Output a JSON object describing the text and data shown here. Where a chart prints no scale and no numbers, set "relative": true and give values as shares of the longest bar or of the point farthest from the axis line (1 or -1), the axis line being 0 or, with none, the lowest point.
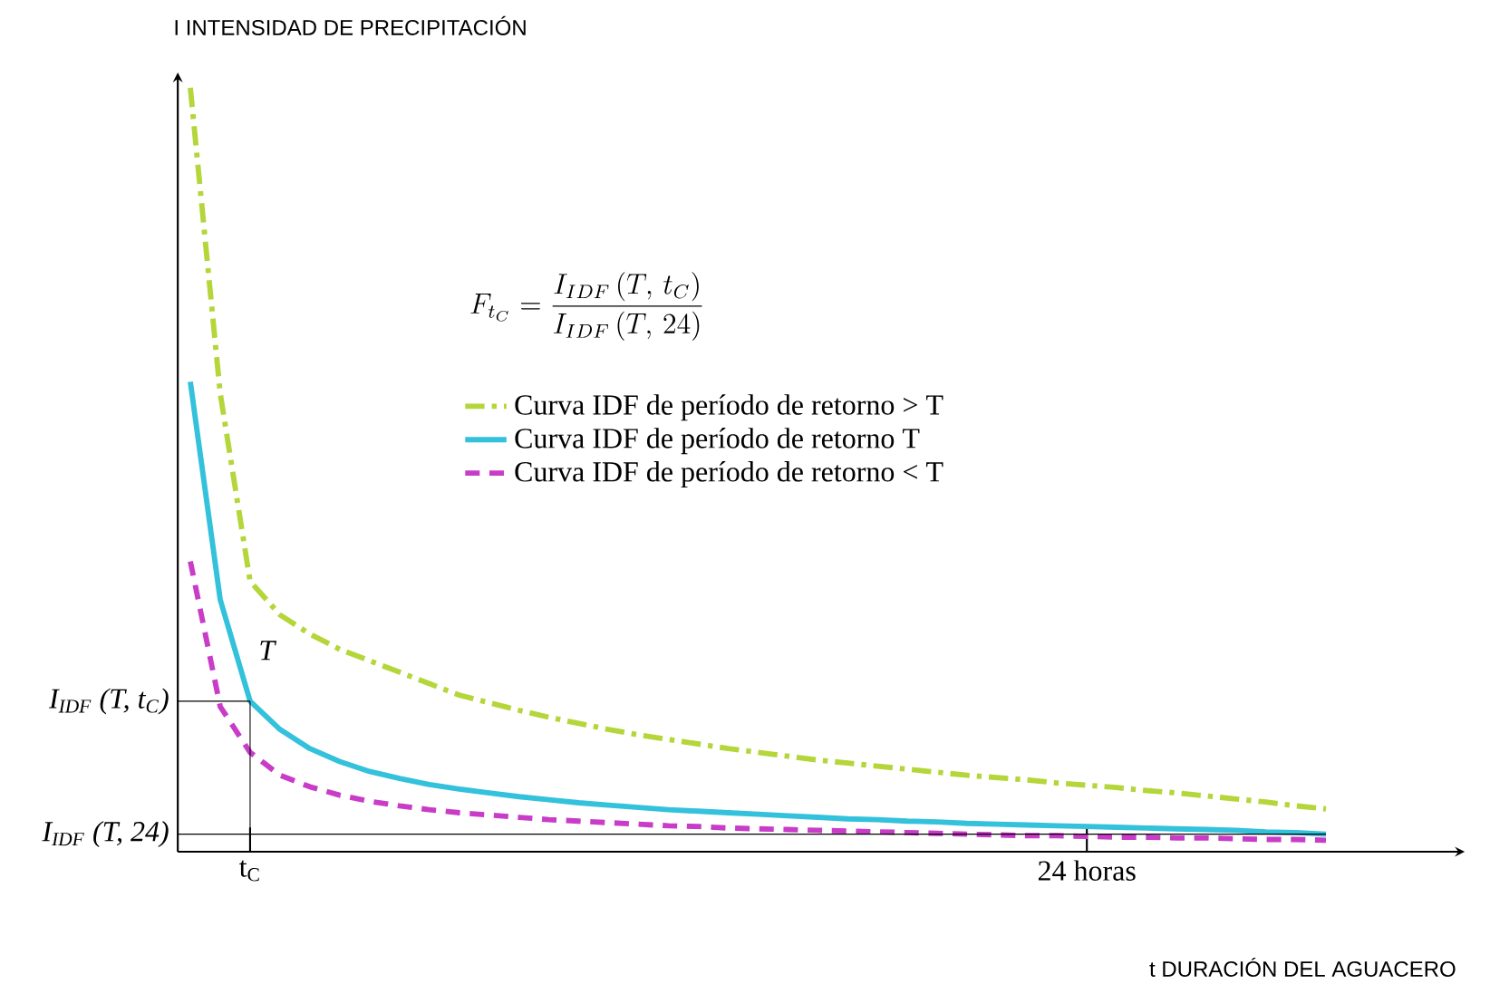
{
  "chart_data": {
    "type": "line",
    "relative": true,
    "ylabel": "I  INTENSIDAD DE PRECIPITACIÓN",
    "xlabel": "t  DURACIÓN DEL AGUACERO",
    "categories": [
      null,
      null,
      "t$_{C}$",
      null,
      null,
      null,
      null,
      null,
      null,
      null,
      null,
      null,
      null,
      null,
      null,
      null,
      null,
      null,
      null,
      null,
      null,
      null,
      null,
      null,
      null,
      null,
      null,
      null,
      null,
      null,
      "24 horas",
      null,
      null,
      null,
      null,
      null,
      null,
      null,
      null
    ],
    "series": [
      {
        "name": "Curva IDF de período de retorno > T",
        "color": "#b5d63a",
        "line_style": "dashdot",
        "values": [
          1.0,
          0.6,
          0.354,
          0.31,
          0.285,
          0.265,
          0.25,
          0.235,
          0.22,
          0.205,
          0.195,
          0.185,
          0.176,
          0.168,
          0.16,
          0.153,
          0.147,
          0.141,
          0.135,
          0.13,
          0.125,
          0.12,
          0.116,
          0.112,
          0.108,
          0.104,
          0.1,
          0.097,
          0.094,
          0.09,
          0.087,
          0.084,
          0.08,
          0.077,
          0.073,
          0.069,
          0.065,
          0.06,
          0.056
        ]
      },
      {
        "name": "Curva IDF de período de retorno T",
        "color": "#33c1dc",
        "line_style": "solid",
        "values": [
          0.615,
          0.33,
          0.197,
          0.16,
          0.135,
          0.118,
          0.105,
          0.096,
          0.088,
          0.082,
          0.077,
          0.072,
          0.068,
          0.064,
          0.061,
          0.058,
          0.055,
          0.053,
          0.051,
          0.049,
          0.047,
          0.045,
          0.043,
          0.042,
          0.04,
          0.039,
          0.037,
          0.036,
          0.035,
          0.034,
          0.033,
          0.032,
          0.031,
          0.03,
          0.029,
          0.028,
          0.026,
          0.025,
          0.023
        ]
      },
      {
        "name": "Curva IDF de período de retorno < T",
        "color": "#c83cc8",
        "line_style": "dashed",
        "values": [
          0.38,
          0.19,
          0.13,
          0.1,
          0.085,
          0.074,
          0.066,
          0.06,
          0.055,
          0.051,
          0.048,
          0.045,
          0.042,
          0.04,
          0.038,
          0.036,
          0.034,
          0.033,
          0.031,
          0.03,
          0.029,
          0.028,
          0.027,
          0.026,
          0.025,
          0.024,
          0.023,
          0.022,
          0.021,
          0.021,
          0.02,
          0.019,
          0.019,
          0.018,
          0.018,
          0.017,
          0.016,
          0.016,
          0.015
        ]
      }
    ],
    "ref_lines": [
      {
        "axis": "y",
        "value": 0.197,
        "label": "I$_{IDF}$ (T, t$_{C}$)"
      },
      {
        "axis": "y",
        "value": 0.023,
        "label": "I$_{IDF}$ (T, 24)"
      },
      {
        "axis": "x",
        "value": "t$_{C}$",
        "label": null
      }
    ],
    "annotations": [
      {
        "text": "T",
        "x": "t$_{C}$",
        "y": 0.24
      },
      "F_{t_C}=\\dfrac{I_{IDF}\\,(T,\\,t_C)}{I_{IDF}\\,(T,\\,24)}"
    ],
    "legend": "top"
  }
}
